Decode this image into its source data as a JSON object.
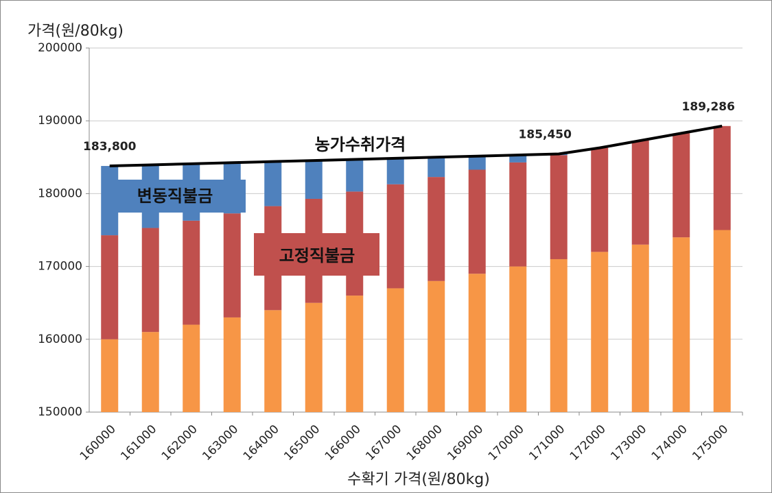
{
  "chart_data": {
    "type": "bar",
    "y_axis_title": "가격(원/80kg)",
    "x_axis_title": "수확기 가격(원/80kg)",
    "categories": [
      160000,
      161000,
      162000,
      163000,
      164000,
      165000,
      166000,
      167000,
      168000,
      169000,
      170000,
      171000,
      172000,
      173000,
      174000,
      175000
    ],
    "ylim": [
      150000,
      200000
    ],
    "yticks": [
      150000,
      160000,
      170000,
      180000,
      190000,
      200000
    ],
    "grid": true,
    "series": [
      {
        "color": "#f79646",
        "values": [
          160000,
          161000,
          162000,
          163000,
          164000,
          165000,
          166000,
          167000,
          168000,
          169000,
          170000,
          171000,
          172000,
          173000,
          174000,
          175000
        ]
      },
      {
        "name": "고정직불금",
        "color": "#c0504d",
        "values": [
          14286,
          14286,
          14286,
          14286,
          14286,
          14286,
          14286,
          14286,
          14286,
          14286,
          14286,
          14286,
          14286,
          14286,
          14286,
          14286
        ]
      },
      {
        "name": "변동직불금",
        "color": "#4f81bd",
        "values": [
          9514,
          8664,
          7814,
          6964,
          6114,
          5264,
          4414,
          3564,
          2714,
          1864,
          1014,
          164,
          0,
          0,
          0,
          0
        ]
      }
    ],
    "line": {
      "name": "농가수취가격",
      "color": "#000000",
      "values": [
        183800,
        183950,
        184100,
        184250,
        184400,
        184550,
        184700,
        184850,
        185000,
        185150,
        185300,
        185450,
        186286,
        187286,
        188286,
        189286
      ],
      "value_labels": [
        "183,800",
        null,
        null,
        null,
        null,
        null,
        null,
        null,
        null,
        null,
        null,
        "185,450",
        null,
        null,
        null,
        "189,286"
      ]
    }
  }
}
